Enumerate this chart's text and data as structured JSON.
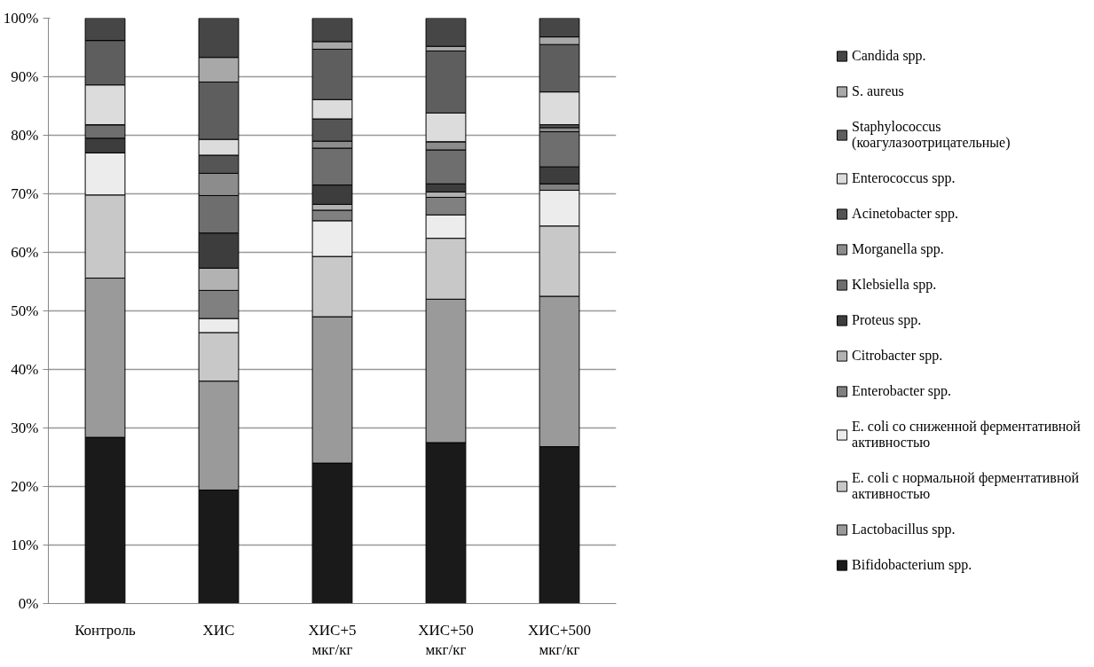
{
  "chart_data": {
    "type": "bar",
    "stacked": true,
    "categories": [
      "Контроль",
      "ХИС",
      "ХИС+5 мкг/кг",
      "ХИС+50 мкг/кг",
      "ХИС+500 мкг/кг"
    ],
    "series": [
      {
        "name": "Bifidobacterium spp.",
        "color": "#1a1a1a",
        "values": [
          28.4,
          19.4,
          24.0,
          27.5,
          26.8
        ]
      },
      {
        "name": "Lactobacillus spp.",
        "color": "#9a9a9a",
        "values": [
          27.2,
          18.6,
          25.0,
          24.5,
          25.7
        ]
      },
      {
        "name": "E. coli с нормальной ферментативной активностью",
        "color": "#c8c8c8",
        "values": [
          14.2,
          8.3,
          10.3,
          10.4,
          12.0
        ]
      },
      {
        "name": "E. coli со сниженной ферментативной активностью",
        "color": "#ececec",
        "values": [
          7.2,
          2.4,
          6.1,
          4.0,
          6.1
        ]
      },
      {
        "name": "Enterobacter spp.",
        "color": "#808080",
        "values": [
          0,
          4.8,
          1.8,
          3.0,
          1.1
        ]
      },
      {
        "name": "Citrobacter spp.",
        "color": "#b2b2b2",
        "values": [
          0,
          3.8,
          1.0,
          0.9,
          0
        ]
      },
      {
        "name": "Proteus spp.",
        "color": "#3d3d3d",
        "values": [
          2.5,
          6.0,
          3.3,
          1.4,
          2.9
        ]
      },
      {
        "name": "Klebsiella spp.",
        "color": "#6e6e6e",
        "values": [
          2.3,
          6.4,
          6.3,
          5.8,
          6.0
        ]
      },
      {
        "name": "Morganella spp.",
        "color": "#8c8c8c",
        "values": [
          0,
          3.8,
          1.2,
          1.4,
          0.7
        ]
      },
      {
        "name": "Acinetobacter spp.",
        "color": "#555555",
        "values": [
          0,
          3.1,
          3.8,
          0,
          0.5
        ]
      },
      {
        "name": "Enterococcus spp.",
        "color": "#dcdcdc",
        "values": [
          6.8,
          2.7,
          3.3,
          4.9,
          5.6
        ]
      },
      {
        "name": "Staphylococcus (коагулазоотрицательные)",
        "color": "#5e5e5e",
        "values": [
          7.6,
          9.8,
          8.6,
          10.6,
          8.1
        ]
      },
      {
        "name": "S. aureus",
        "color": "#a8a8a8",
        "values": [
          0,
          4.2,
          1.3,
          0.8,
          1.3
        ]
      },
      {
        "name": "Candida spp.",
        "color": "#464646",
        "values": [
          3.8,
          6.7,
          4.0,
          4.8,
          3.2
        ]
      }
    ],
    "ylim": [
      0,
      100
    ],
    "yticks": [
      {
        "value": 0,
        "label": "0%"
      },
      {
        "value": 10,
        "label": "10%"
      },
      {
        "value": 20,
        "label": "20%"
      },
      {
        "value": 30,
        "label": "30%"
      },
      {
        "value": 40,
        "label": "40%"
      },
      {
        "value": 50,
        "label": "50%"
      },
      {
        "value": 60,
        "label": "60%"
      },
      {
        "value": 70,
        "label": "70%"
      },
      {
        "value": 80,
        "label": "80%"
      },
      {
        "value": 90,
        "label": "90%"
      },
      {
        "value": 100,
        "label": "100%"
      }
    ],
    "grid": "y",
    "legend": "right"
  }
}
